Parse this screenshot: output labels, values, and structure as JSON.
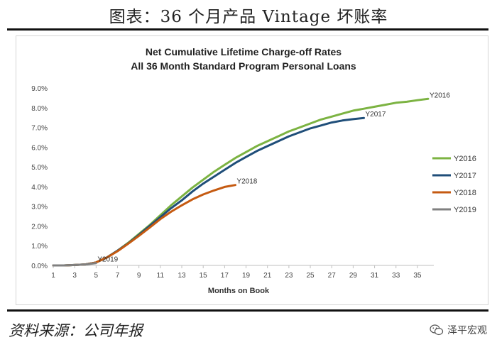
{
  "page": {
    "title": "图表：36 个月产品 Vintage 坏账率",
    "source": "资料来源：公司年报",
    "watermark": "泽平宏观"
  },
  "chart_data": {
    "type": "line",
    "title": "Net Cumulative Lifetime Charge-off Rates",
    "subtitle": "All 36 Month Standard Program Personal Loans",
    "xlabel": "Months on Book",
    "ylabel": "",
    "xlim": [
      1,
      36
    ],
    "ylim": [
      0,
      9
    ],
    "x_ticks": [
      1,
      3,
      5,
      7,
      9,
      11,
      13,
      15,
      17,
      19,
      21,
      23,
      25,
      27,
      29,
      31,
      33,
      35
    ],
    "y_ticks": [
      "0.0%",
      "1.0%",
      "2.0%",
      "3.0%",
      "4.0%",
      "5.0%",
      "6.0%",
      "7.0%",
      "8.0%",
      "9.0%"
    ],
    "grid": false,
    "legend_position": "right",
    "series": [
      {
        "name": "Y2016",
        "color": "#7cb342",
        "x": [
          1,
          2,
          3,
          4,
          5,
          6,
          7,
          8,
          9,
          10,
          11,
          12,
          13,
          14,
          15,
          16,
          17,
          18,
          19,
          20,
          21,
          22,
          23,
          24,
          25,
          26,
          27,
          28,
          29,
          30,
          31,
          32,
          33,
          34,
          35,
          36
        ],
        "values": [
          0,
          0,
          0.02,
          0.05,
          0.15,
          0.4,
          0.75,
          1.15,
          1.6,
          2.05,
          2.55,
          3.05,
          3.5,
          3.95,
          4.35,
          4.75,
          5.1,
          5.45,
          5.75,
          6.05,
          6.3,
          6.55,
          6.8,
          7.0,
          7.2,
          7.4,
          7.55,
          7.7,
          7.85,
          7.95,
          8.05,
          8.15,
          8.25,
          8.3,
          8.38,
          8.45
        ]
      },
      {
        "name": "Y2017",
        "color": "#1f4e79",
        "x": [
          1,
          2,
          3,
          4,
          5,
          6,
          7,
          8,
          9,
          10,
          11,
          12,
          13,
          14,
          15,
          16,
          17,
          18,
          19,
          20,
          21,
          22,
          23,
          24,
          25,
          26,
          27,
          28,
          29,
          30
        ],
        "values": [
          0,
          0,
          0.02,
          0.05,
          0.15,
          0.4,
          0.75,
          1.12,
          1.55,
          2.0,
          2.45,
          2.9,
          3.3,
          3.75,
          4.15,
          4.5,
          4.85,
          5.2,
          5.5,
          5.8,
          6.05,
          6.3,
          6.55,
          6.75,
          6.95,
          7.1,
          7.25,
          7.35,
          7.42,
          7.48
        ]
      },
      {
        "name": "Y2018",
        "color": "#c55a11",
        "x": [
          1,
          2,
          3,
          4,
          5,
          6,
          7,
          8,
          9,
          10,
          11,
          12,
          13,
          14,
          15,
          16,
          17,
          18
        ],
        "values": [
          0,
          0,
          0.02,
          0.05,
          0.15,
          0.4,
          0.72,
          1.1,
          1.5,
          1.92,
          2.35,
          2.72,
          3.05,
          3.35,
          3.6,
          3.8,
          3.98,
          4.08
        ]
      },
      {
        "name": "Y2019",
        "color": "#808080",
        "x": [
          1,
          2,
          3,
          4,
          5
        ],
        "values": [
          0,
          0,
          0.02,
          0.05,
          0.12
        ]
      }
    ]
  }
}
